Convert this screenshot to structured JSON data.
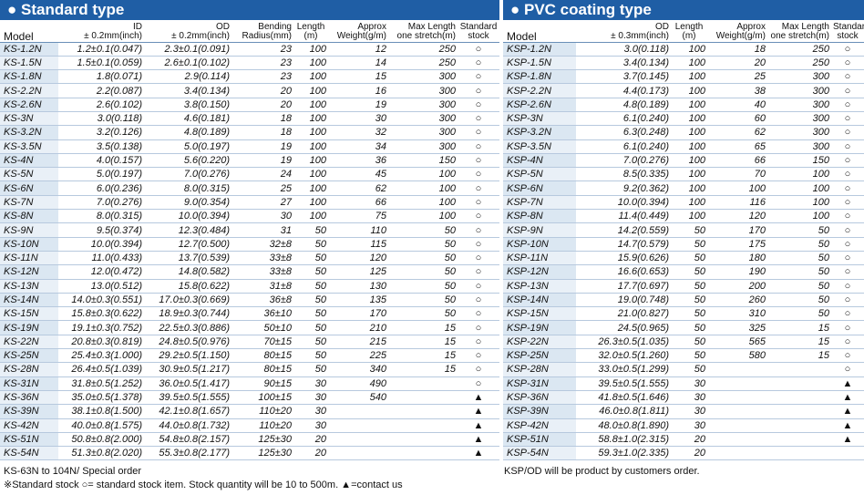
{
  "standard": {
    "title": "Standard type",
    "headers": {
      "model": "Model",
      "id": "ID",
      "id_tol": "± 0.2mm(inch)",
      "od": "OD",
      "od_tol": "± 0.2mm(inch)",
      "bending": "Bending",
      "bending2": "Radius(mm)",
      "length": "Length",
      "length2": "(m)",
      "weight": "Approx",
      "weight2": "Weight(g/m)",
      "maxlen": "Max Length",
      "maxlen2": "one stretch(m)",
      "stock": "Standard",
      "stock2": "stock"
    },
    "rows": [
      [
        "KS-1.2N",
        "1.2±0.1(0.047)",
        "2.3±0.1(0.091)",
        "23",
        "100",
        "12",
        "250",
        "○"
      ],
      [
        "KS-1.5N",
        "1.5±0.1(0.059)",
        "2.6±0.1(0.102)",
        "23",
        "100",
        "14",
        "250",
        "○"
      ],
      [
        "KS-1.8N",
        "1.8(0.071)",
        "2.9(0.114)",
        "23",
        "100",
        "15",
        "300",
        "○"
      ],
      [
        "KS-2.2N",
        "2.2(0.087)",
        "3.4(0.134)",
        "20",
        "100",
        "16",
        "300",
        "○"
      ],
      [
        "KS-2.6N",
        "2.6(0.102)",
        "3.8(0.150)",
        "20",
        "100",
        "19",
        "300",
        "○"
      ],
      [
        "KS-3N",
        "3.0(0.118)",
        "4.6(0.181)",
        "18",
        "100",
        "30",
        "300",
        "○"
      ],
      [
        "KS-3.2N",
        "3.2(0.126)",
        "4.8(0.189)",
        "18",
        "100",
        "32",
        "300",
        "○"
      ],
      [
        "KS-3.5N",
        "3.5(0.138)",
        "5.0(0.197)",
        "19",
        "100",
        "34",
        "300",
        "○"
      ],
      [
        "KS-4N",
        "4.0(0.157)",
        "5.6(0.220)",
        "19",
        "100",
        "36",
        "150",
        "○"
      ],
      [
        "KS-5N",
        "5.0(0.197)",
        "7.0(0.276)",
        "24",
        "100",
        "45",
        "100",
        "○"
      ],
      [
        "KS-6N",
        "6.0(0.236)",
        "8.0(0.315)",
        "25",
        "100",
        "62",
        "100",
        "○"
      ],
      [
        "KS-7N",
        "7.0(0.276)",
        "9.0(0.354)",
        "27",
        "100",
        "66",
        "100",
        "○"
      ],
      [
        "KS-8N",
        "8.0(0.315)",
        "10.0(0.394)",
        "30",
        "100",
        "75",
        "100",
        "○"
      ],
      [
        "KS-9N",
        "9.5(0.374)",
        "12.3(0.484)",
        "31",
        "50",
        "110",
        "50",
        "○"
      ],
      [
        "KS-10N",
        "10.0(0.394)",
        "12.7(0.500)",
        "32±8",
        "50",
        "115",
        "50",
        "○"
      ],
      [
        "KS-11N",
        "11.0(0.433)",
        "13.7(0.539)",
        "33±8",
        "50",
        "120",
        "50",
        "○"
      ],
      [
        "KS-12N",
        "12.0(0.472)",
        "14.8(0.582)",
        "33±8",
        "50",
        "125",
        "50",
        "○"
      ],
      [
        "KS-13N",
        "13.0(0.512)",
        "15.8(0.622)",
        "31±8",
        "50",
        "130",
        "50",
        "○"
      ],
      [
        "KS-14N",
        "14.0±0.3(0.551)",
        "17.0±0.3(0.669)",
        "36±8",
        "50",
        "135",
        "50",
        "○"
      ],
      [
        "KS-15N",
        "15.8±0.3(0.622)",
        "18.9±0.3(0.744)",
        "36±10",
        "50",
        "170",
        "50",
        "○"
      ],
      [
        "KS-19N",
        "19.1±0.3(0.752)",
        "22.5±0.3(0.886)",
        "50±10",
        "50",
        "210",
        "15",
        "○"
      ],
      [
        "KS-22N",
        "20.8±0.3(0.819)",
        "24.8±0.5(0.976)",
        "70±15",
        "50",
        "215",
        "15",
        "○"
      ],
      [
        "KS-25N",
        "25.4±0.3(1.000)",
        "29.2±0.5(1.150)",
        "80±15",
        "50",
        "225",
        "15",
        "○"
      ],
      [
        "KS-28N",
        "26.4±0.5(1.039)",
        "30.9±0.5(1.217)",
        "80±15",
        "50",
        "340",
        "15",
        "○"
      ],
      [
        "KS-31N",
        "31.8±0.5(1.252)",
        "36.0±0.5(1.417)",
        "90±15",
        "30",
        "490",
        "",
        "○"
      ],
      [
        "KS-36N",
        "35.0±0.5(1.378)",
        "39.5±0.5(1.555)",
        "100±15",
        "30",
        "540",
        "",
        "▲"
      ],
      [
        "KS-39N",
        "38.1±0.8(1.500)",
        "42.1±0.8(1.657)",
        "110±20",
        "30",
        "",
        "",
        "▲"
      ],
      [
        "KS-42N",
        "40.0±0.8(1.575)",
        "44.0±0.8(1.732)",
        "110±20",
        "30",
        "",
        "",
        "▲"
      ],
      [
        "KS-51N",
        "50.8±0.8(2.000)",
        "54.8±0.8(2.157)",
        "125±30",
        "20",
        "",
        "",
        "▲"
      ],
      [
        "KS-54N",
        "51.3±0.8(2.020)",
        "55.3±0.8(2.177)",
        "125±30",
        "20",
        "",
        "",
        "▲"
      ]
    ],
    "footnote1": "KS-63N to 104N/ Special order",
    "footnote2": "※Standard  stock     ○= standard stock item. Stock quantity will be 10 to 500m.  ▲=contact us"
  },
  "pvc": {
    "title": "PVC coating type",
    "headers": {
      "model": "Model",
      "od": "OD",
      "od_tol": "± 0.3mm(inch)",
      "length": "Length",
      "length2": "(m)",
      "weight": "Approx",
      "weight2": "Weight(g/m)",
      "maxlen": "Max Length",
      "maxlen2": "one stretch(m)",
      "stock": "Standard",
      "stock2": "stock"
    },
    "rows": [
      [
        "KSP-1.2N",
        "3.0(0.118)",
        "100",
        "18",
        "250",
        "○"
      ],
      [
        "KSP-1.5N",
        "3.4(0.134)",
        "100",
        "20",
        "250",
        "○"
      ],
      [
        "KSP-1.8N",
        "3.7(0.145)",
        "100",
        "25",
        "300",
        "○"
      ],
      [
        "KSP-2.2N",
        "4.4(0.173)",
        "100",
        "38",
        "300",
        "○"
      ],
      [
        "KSP-2.6N",
        "4.8(0.189)",
        "100",
        "40",
        "300",
        "○"
      ],
      [
        "KSP-3N",
        "6.1(0.240)",
        "100",
        "60",
        "300",
        "○"
      ],
      [
        "KSP-3.2N",
        "6.3(0.248)",
        "100",
        "62",
        "300",
        "○"
      ],
      [
        "KSP-3.5N",
        "6.1(0.240)",
        "100",
        "65",
        "300",
        "○"
      ],
      [
        "KSP-4N",
        "7.0(0.276)",
        "100",
        "66",
        "150",
        "○"
      ],
      [
        "KSP-5N",
        "8.5(0.335)",
        "100",
        "70",
        "100",
        "○"
      ],
      [
        "KSP-6N",
        "9.2(0.362)",
        "100",
        "100",
        "100",
        "○"
      ],
      [
        "KSP-7N",
        "10.0(0.394)",
        "100",
        "116",
        "100",
        "○"
      ],
      [
        "KSP-8N",
        "11.4(0.449)",
        "100",
        "120",
        "100",
        "○"
      ],
      [
        "KSP-9N",
        "14.2(0.559)",
        "50",
        "170",
        "50",
        "○"
      ],
      [
        "KSP-10N",
        "14.7(0.579)",
        "50",
        "175",
        "50",
        "○"
      ],
      [
        "KSP-11N",
        "15.9(0.626)",
        "50",
        "180",
        "50",
        "○"
      ],
      [
        "KSP-12N",
        "16.6(0.653)",
        "50",
        "190",
        "50",
        "○"
      ],
      [
        "KSP-13N",
        "17.7(0.697)",
        "50",
        "200",
        "50",
        "○"
      ],
      [
        "KSP-14N",
        "19.0(0.748)",
        "50",
        "260",
        "50",
        "○"
      ],
      [
        "KSP-15N",
        "21.0(0.827)",
        "50",
        "310",
        "50",
        "○"
      ],
      [
        "KSP-19N",
        "24.5(0.965)",
        "50",
        "325",
        "15",
        "○"
      ],
      [
        "KSP-22N",
        "26.3±0.5(1.035)",
        "50",
        "565",
        "15",
        "○"
      ],
      [
        "KSP-25N",
        "32.0±0.5(1.260)",
        "50",
        "580",
        "15",
        "○"
      ],
      [
        "KSP-28N",
        "33.0±0.5(1.299)",
        "50",
        "",
        "",
        "○"
      ],
      [
        "KSP-31N",
        "39.5±0.5(1.555)",
        "30",
        "",
        "",
        "▲"
      ],
      [
        "KSP-36N",
        "41.8±0.5(1.646)",
        "30",
        "",
        "",
        "▲"
      ],
      [
        "KSP-39N",
        "46.0±0.8(1.811)",
        "30",
        "",
        "",
        "▲"
      ],
      [
        "KSP-42N",
        "48.0±0.8(1.890)",
        "30",
        "",
        "",
        "▲"
      ],
      [
        "KSP-51N",
        "58.8±1.0(2.315)",
        "20",
        "",
        "",
        "▲"
      ],
      [
        "KSP-54N",
        "59.3±1.0(2.335)",
        "20",
        "",
        "",
        ""
      ]
    ],
    "footnote1": "KSP/OD will be product by customers order."
  }
}
